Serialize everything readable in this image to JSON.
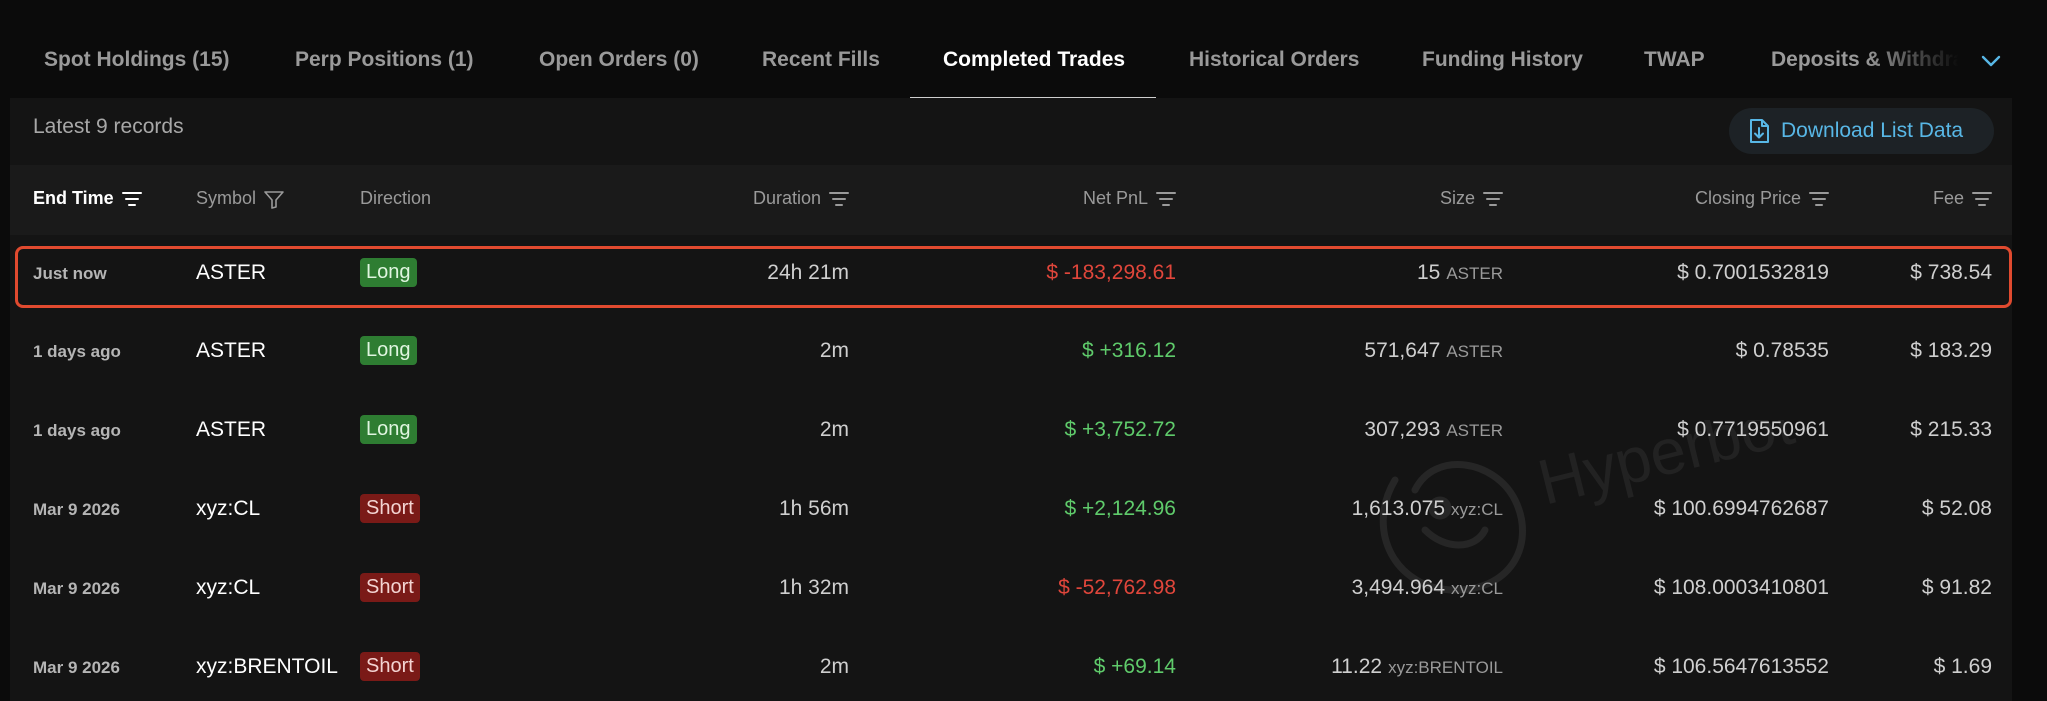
{
  "tabs": [
    {
      "label": "Spot Holdings (15)",
      "active": false
    },
    {
      "label": "Perp Positions (1)",
      "active": false
    },
    {
      "label": "Open Orders (0)",
      "active": false
    },
    {
      "label": "Recent Fills",
      "active": false
    },
    {
      "label": "Completed Trades",
      "active": true
    },
    {
      "label": "Historical Orders",
      "active": false
    },
    {
      "label": "Funding History",
      "active": false
    },
    {
      "label": "TWAP",
      "active": false
    },
    {
      "label": "Deposits & Withdra",
      "active": false
    }
  ],
  "records_label": "Latest 9 records",
  "download_label": "Download List Data",
  "columns": {
    "end_time": "End Time",
    "symbol": "Symbol",
    "direction": "Direction",
    "duration": "Duration",
    "net_pnl": "Net PnL",
    "size": "Size",
    "closing_price": "Closing Price",
    "fee": "Fee"
  },
  "rows": [
    {
      "time": "Just now",
      "symbol": "ASTER",
      "direction": "Long",
      "duration": "24h 21m",
      "pnl": "$ -183,298.61",
      "size": "15",
      "unit": "ASTER",
      "close": "$ 0.7001532819",
      "fee": "$ 738.54"
    },
    {
      "time": "1 days ago",
      "symbol": "ASTER",
      "direction": "Long",
      "duration": "2m",
      "pnl": "$ +316.12",
      "size": "571,647",
      "unit": "ASTER",
      "close": "$ 0.78535",
      "fee": "$ 183.29"
    },
    {
      "time": "1 days ago",
      "symbol": "ASTER",
      "direction": "Long",
      "duration": "2m",
      "pnl": "$ +3,752.72",
      "size": "307,293",
      "unit": "ASTER",
      "close": "$ 0.7719550961",
      "fee": "$ 215.33"
    },
    {
      "time": "Mar 9 2026",
      "symbol": "xyz:CL",
      "direction": "Short",
      "duration": "1h 56m",
      "pnl": "$ +2,124.96",
      "size": "1,613.075",
      "unit": "xyz:CL",
      "close": "$ 100.6994762687",
      "fee": "$ 52.08"
    },
    {
      "time": "Mar 9 2026",
      "symbol": "xyz:CL",
      "direction": "Short",
      "duration": "1h 32m",
      "pnl": "$ -52,762.98",
      "size": "3,494.964",
      "unit": "xyz:CL",
      "close": "$ 108.0003410801",
      "fee": "$ 91.82"
    },
    {
      "time": "Mar 9 2026",
      "symbol": "xyz:BRENTOIL",
      "direction": "Short",
      "duration": "2m",
      "pnl": "$ +69.14",
      "size": "11.22",
      "unit": "xyz:BRENTOIL",
      "close": "$ 106.5647613552",
      "fee": "$ 1.69"
    }
  ],
  "watermark": "Hyperbot",
  "colors": {
    "accent": "#58b7e6",
    "long": "#2e7d32",
    "short": "#7a1a17",
    "positive": "#5fcb6b",
    "negative": "#e0463b",
    "highlight": "#e04a2f"
  },
  "icons": {
    "download": "download-file-icon",
    "filter": "funnel-icon",
    "sort": "sort-lines-icon",
    "more": "chevron-down-icon"
  }
}
